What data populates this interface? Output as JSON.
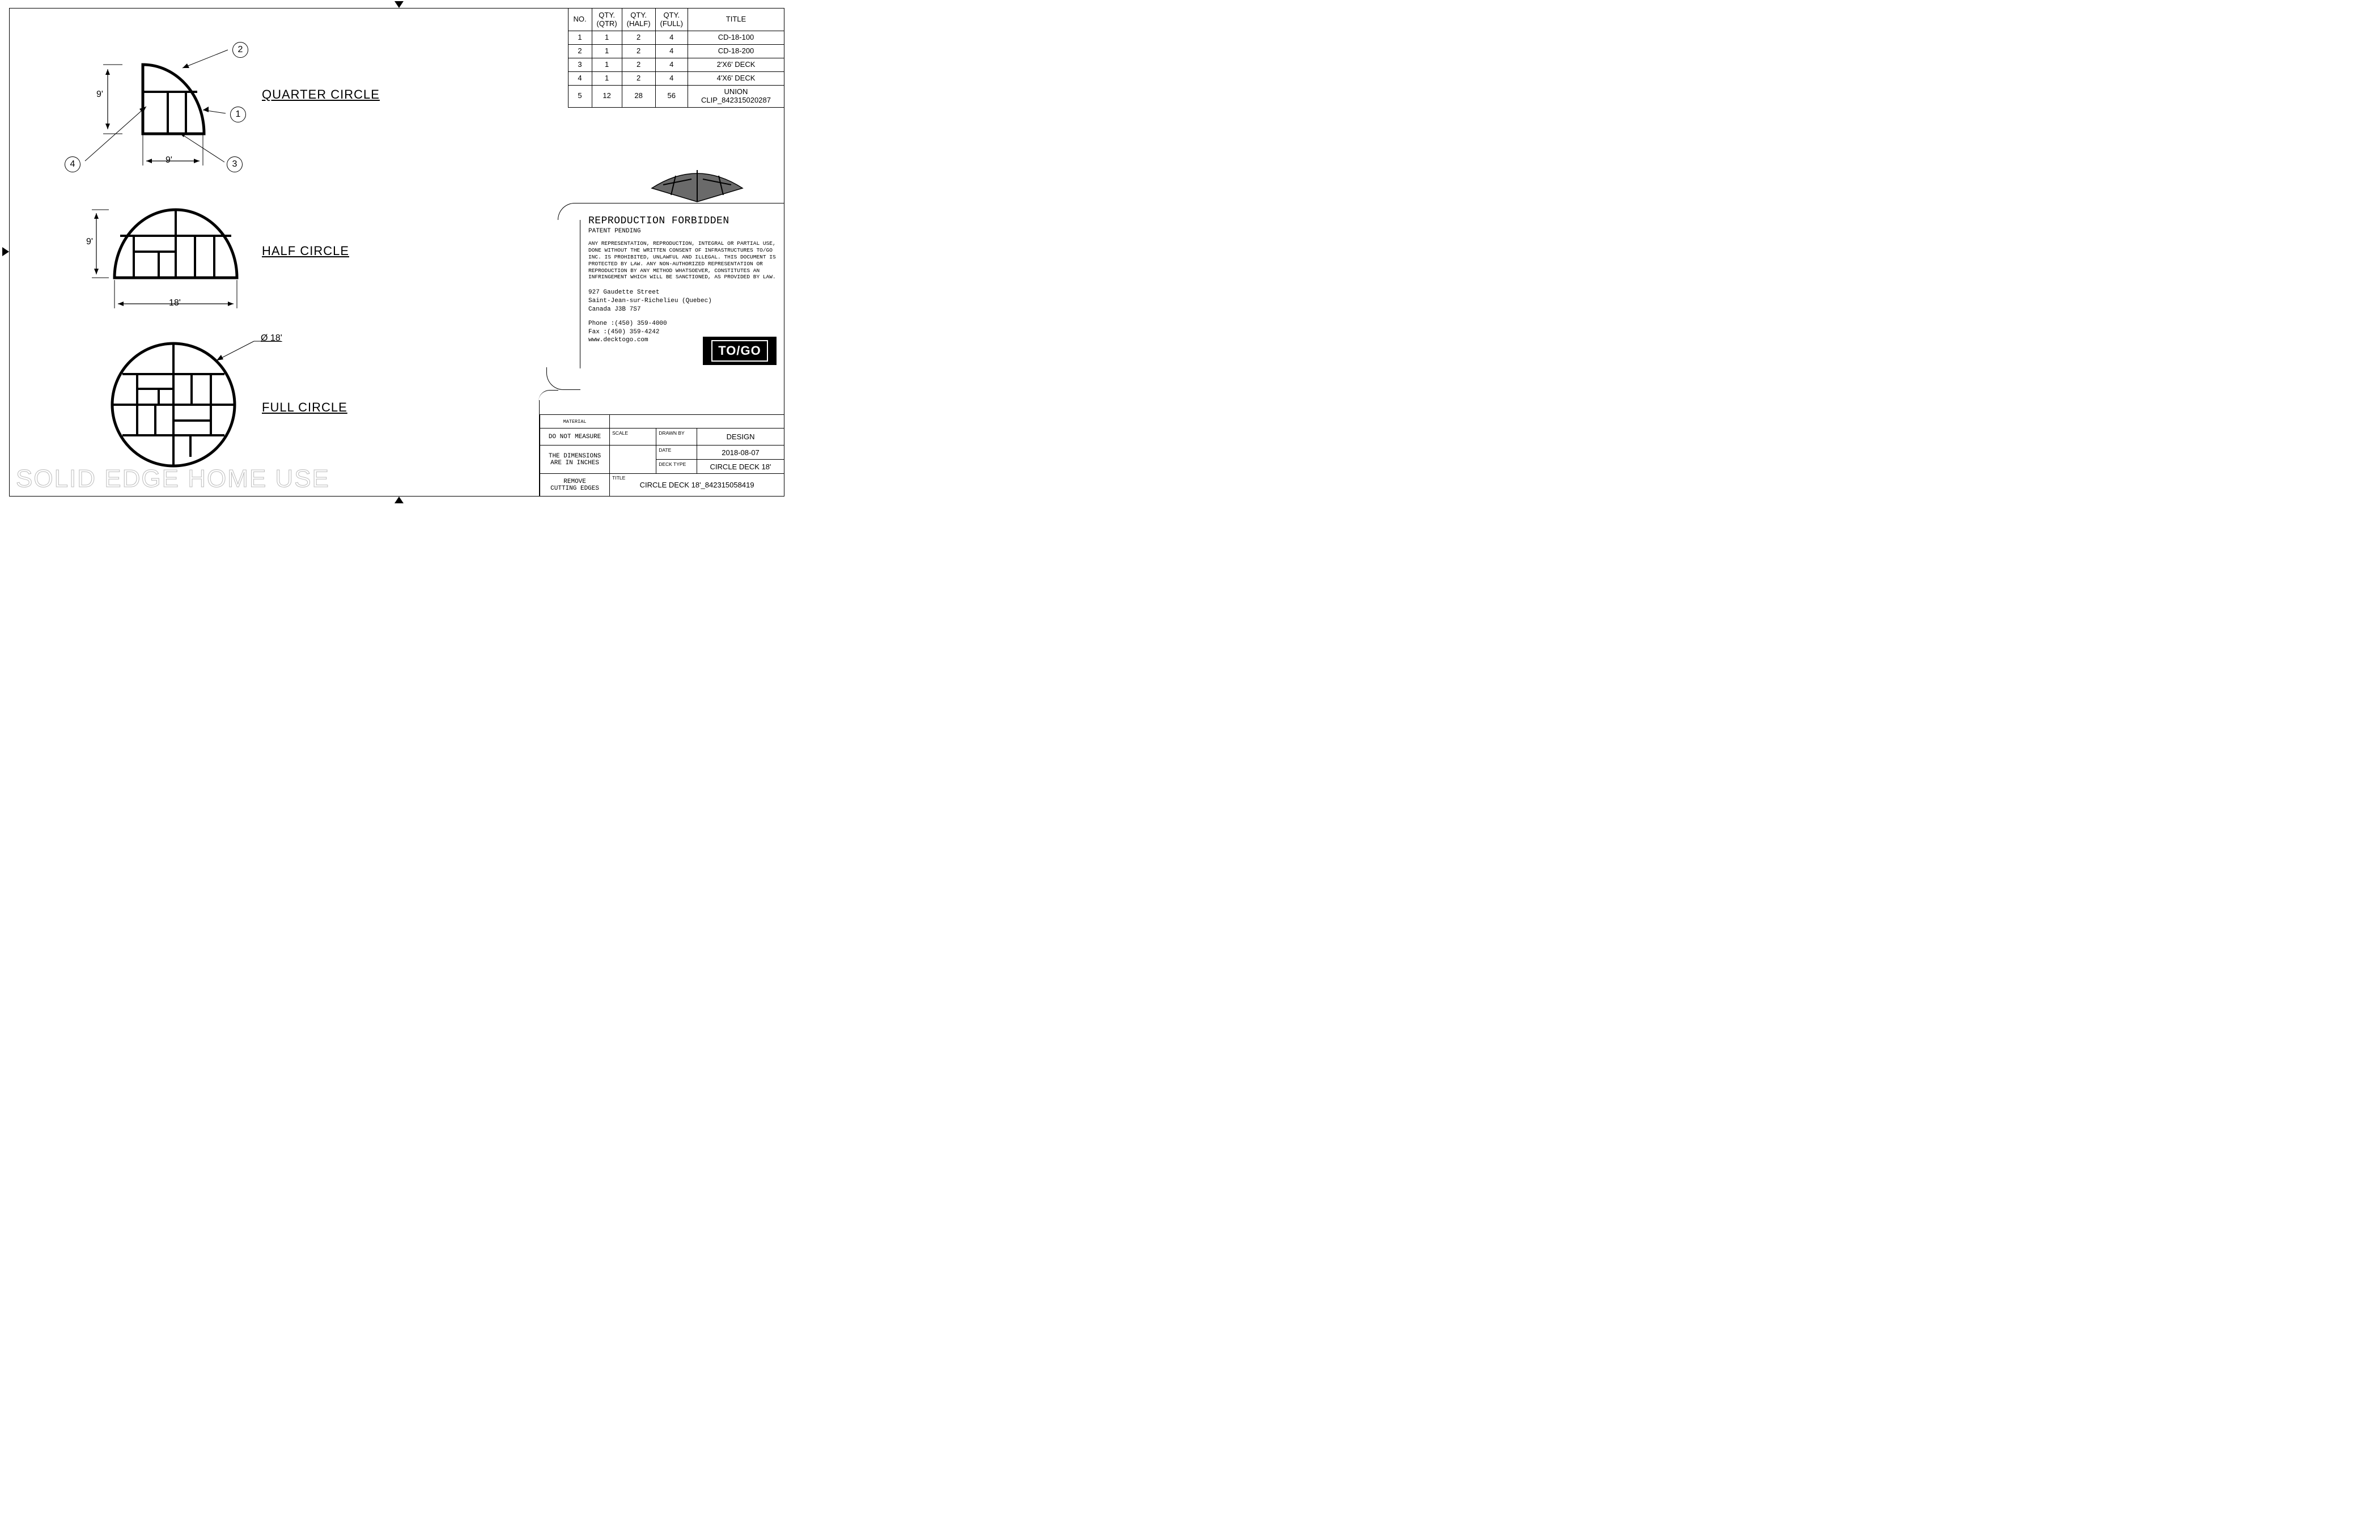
{
  "border_color": "#000000",
  "background_color": "#ffffff",
  "watermark": "SOLID EDGE HOME USE",
  "diagrams": {
    "quarter": {
      "label": "QUARTER CIRCLE",
      "dim_v": "9'",
      "dim_h": "9'",
      "balloons": [
        "1",
        "2",
        "3",
        "4"
      ]
    },
    "half": {
      "label": "HALF CIRCLE",
      "dim_v": "9'",
      "dim_h": "18'"
    },
    "full": {
      "label": "FULL CIRCLE",
      "diameter": "Ø 18'"
    }
  },
  "bom": {
    "headers": [
      "NO.",
      "QTY.\n(QTR)",
      "QTY.\n(HALF)",
      "QTY.\n(FULL)",
      "TITLE"
    ],
    "rows": [
      [
        "1",
        "1",
        "2",
        "4",
        "CD-18-100"
      ],
      [
        "2",
        "1",
        "2",
        "4",
        "CD-18-200"
      ],
      [
        "3",
        "1",
        "2",
        "4",
        "2'X6' DECK"
      ],
      [
        "4",
        "1",
        "2",
        "4",
        "4'X6' DECK"
      ],
      [
        "5",
        "12",
        "28",
        "56",
        "UNION CLIP_842315020287"
      ]
    ]
  },
  "legal": {
    "title": "REPRODUCTION FORBIDDEN",
    "subtitle": "PATENT PENDING",
    "paragraph": "ANY REPRESENTATION, REPRODUCTION, INTEGRAL OR PARTIAL USE, DONE WITHOUT THE WRITTEN CONSENT OF INFRASTRUCTURES TO/GO INC. IS PROHIBITED, UNLAWFUL AND ILLEGAL. THIS DOCUMENT IS PROTECTED BY LAW. ANY NON-AUTHORIZED REPRESENTATION OR REPRODUCTION BY ANY METHOD WHATSOEVER, CONSTITUTES AN INFRINGEMENT WHICH WILL BE SANCTIONED, AS PROVIDED BY LAW.",
    "address_line1": "927 Gaudette Street",
    "address_line2": "Saint-Jean-sur-Richelieu (Quebec)",
    "address_line3": "Canada J3B 7S7",
    "phone": "Phone :(450) 359-4000",
    "fax": "Fax :(450) 359-4242",
    "web": "www.decktogo.com",
    "logo": "TO/GO"
  },
  "titleblock": {
    "material_lbl": "MATERIAL",
    "do_not_measure": "DO NOT MEASURE",
    "dims_inches_1": "THE DIMENSIONS",
    "dims_inches_2": "ARE IN INCHES",
    "remove_1": "REMOVE",
    "remove_2": "CUTTING EDGES",
    "scale_lbl": "SCALE",
    "drawn_by_lbl": "DRAWN BY",
    "drawn_by": "DESIGN",
    "date_lbl": "DATE",
    "date": "2018-08-07",
    "deck_type_lbl": "DECK TYPE",
    "deck_type": "CIRCLE DECK 18'",
    "title_lbl": "TITLE",
    "title": "CIRCLE DECK 18'_842315058419"
  }
}
